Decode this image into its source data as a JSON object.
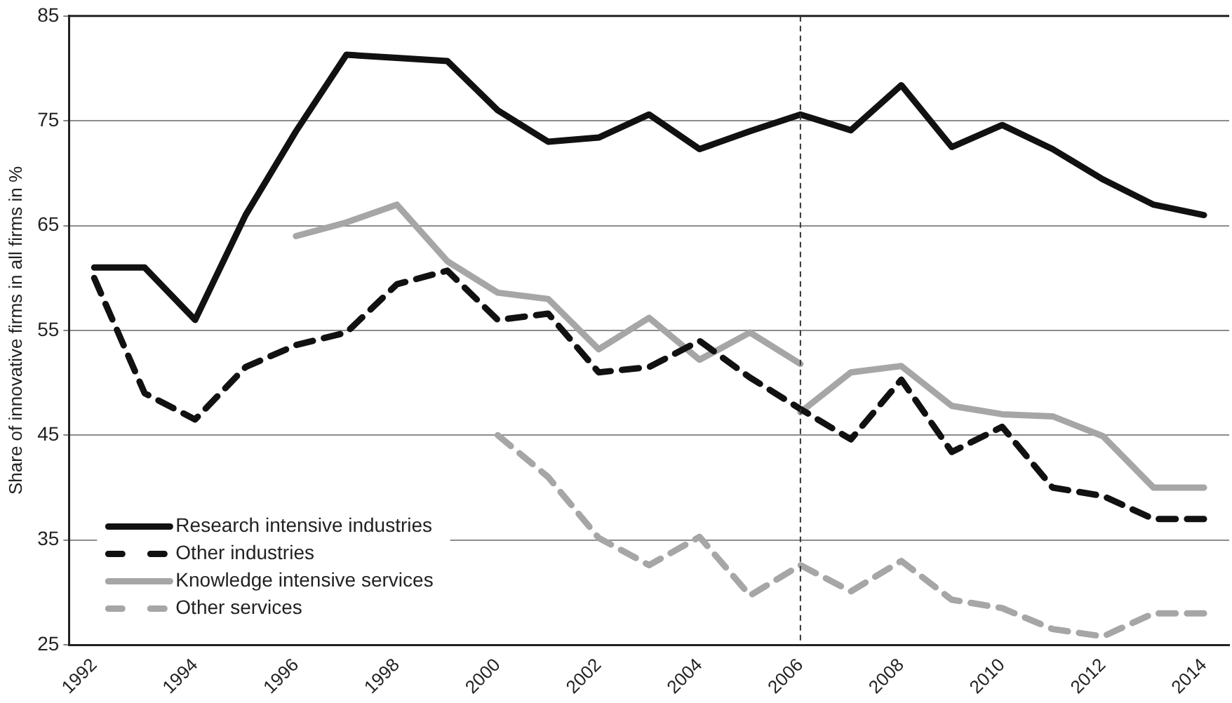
{
  "chart_data": {
    "type": "line",
    "ylabel": "Share of innovative firms in all firms in %",
    "x": [
      1992,
      1993,
      1994,
      1995,
      1996,
      1997,
      1998,
      1999,
      2000,
      2001,
      2002,
      2003,
      2004,
      2005,
      2006,
      2007,
      2008,
      2009,
      2010,
      2011,
      2012,
      2013,
      2014
    ],
    "xlim": [
      1991.5,
      2014.5
    ],
    "xticks": [
      1992,
      1994,
      1996,
      1998,
      2000,
      2002,
      2004,
      2006,
      2008,
      2010,
      2012,
      2014
    ],
    "ylim": [
      25,
      85
    ],
    "yticks": [
      25,
      35,
      45,
      55,
      65,
      75,
      85
    ],
    "grid": "y",
    "legend": "bottom left",
    "marker": "none",
    "ref_lines": [
      {
        "axis": "x",
        "value": 2006,
        "color": "#333333",
        "line_style": "dashed"
      }
    ],
    "series": [
      {
        "name": "Research intensive industries",
        "color": "#111111",
        "line_style": "solid",
        "values": [
          61,
          61,
          56,
          66,
          74,
          81.3,
          81,
          80.7,
          76,
          73,
          73.4,
          75.6,
          72.3,
          74,
          75.6,
          74.1,
          78.4,
          72.5,
          74.6,
          72.3,
          69.4,
          67,
          66
        ]
      },
      {
        "name": "Other industries",
        "color": "#111111",
        "line_style": "dashed",
        "values": [
          60,
          49,
          46.5,
          51.5,
          53.6,
          54.8,
          59.4,
          60.7,
          56,
          56.6,
          51,
          51.5,
          54,
          50.5,
          47.5,
          44.6,
          50.3,
          43.4,
          45.8,
          40,
          39.2,
          37,
          37
        ]
      },
      {
        "name": "Knowledge intensive services",
        "color": "#a6a6a6",
        "line_style": "solid",
        "x": [
          1996,
          1997,
          1998,
          1999,
          2000,
          2001,
          2002,
          2003,
          2004,
          2005,
          2006,
          null,
          2006,
          2007,
          2008,
          2009,
          2010,
          2011,
          2012,
          2013,
          2014
        ],
        "values": [
          64,
          65.3,
          67,
          61.6,
          58.6,
          58,
          53.2,
          56.2,
          52.2,
          54.8,
          51.8,
          null,
          47.2,
          51,
          51.6,
          47.8,
          47,
          46.8,
          44.9,
          40,
          40
        ]
      },
      {
        "name": "Other services",
        "color": "#a6a6a6",
        "line_style": "dashed",
        "values": [
          null,
          null,
          null,
          null,
          null,
          null,
          null,
          null,
          45,
          41,
          35.2,
          32.6,
          35.3,
          29.7,
          32.6,
          30.1,
          33,
          29.3,
          28.5,
          26.5,
          25.8,
          28,
          28
        ]
      }
    ]
  }
}
